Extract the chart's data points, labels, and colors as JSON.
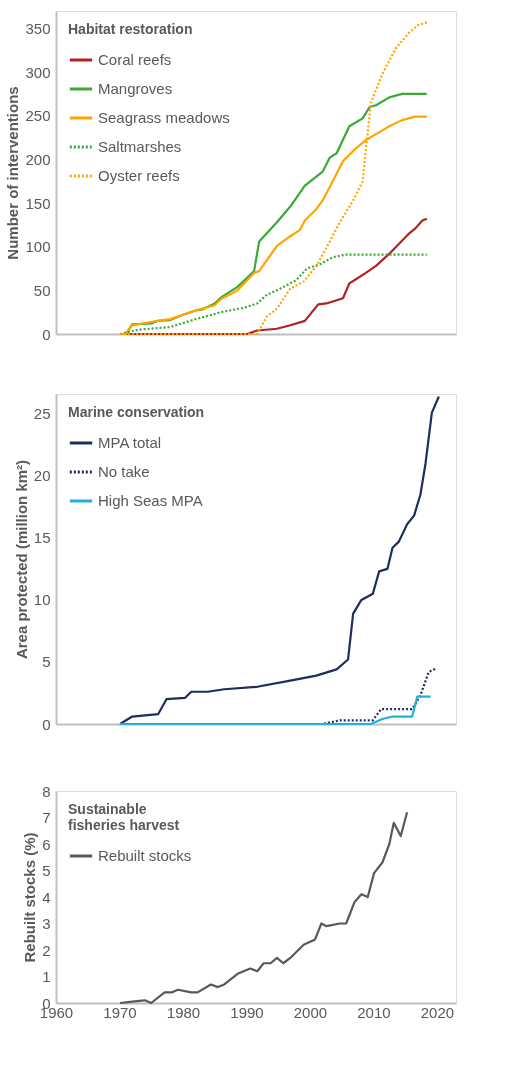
{
  "chart_data": [
    {
      "type": "line",
      "legend_title": "Habitat restoration",
      "ylabel": "Number of interventions",
      "xlim": [
        1960,
        2023
      ],
      "xticks": [
        1960,
        1970,
        1980,
        1990,
        2000,
        2010,
        2020
      ],
      "ylim": [
        0,
        370
      ],
      "yticks": [
        0,
        50,
        100,
        150,
        200,
        250,
        300,
        350
      ],
      "grid": false,
      "legend": "top left",
      "tick_labels": "y",
      "series": [
        {
          "name": "Coral reefs",
          "color": "#b22222",
          "line_style": "solid",
          "x": [
            1970.1,
            1990.1,
            1991.7,
            1994.8,
            1996.9,
            1999.2,
            2001.3,
            2002.6,
            2005.2,
            2006.2,
            2007.3,
            2008.8,
            2010.4,
            2012.5,
            2014,
            2015.6,
            2016.6,
            2017.7,
            2018.4
          ],
          "values": [
            0,
            0,
            4,
            6,
            10,
            15,
            34,
            35,
            41,
            58,
            63,
            70,
            78,
            92,
            103,
            115,
            121,
            130,
            132
          ]
        },
        {
          "name": "Mangroves",
          "color": "#3aaa35",
          "line_style": "solid",
          "x": [
            1970.1,
            1971,
            1972,
            1975,
            1976,
            1978,
            1980,
            1982,
            1983,
            1985,
            1986,
            1988.6,
            1991.2,
            1992,
            1994.8,
            1996.9,
            1999.2,
            2002,
            2003.1,
            2004.2,
            2006.2,
            2008.3,
            2009.4,
            2010.4,
            2012.5,
            2014.5,
            2018.4
          ],
          "values": [
            0,
            0,
            11,
            12,
            15,
            16,
            22,
            27,
            28,
            35,
            42,
            54,
            72,
            106,
            128,
            146,
            170,
            186,
            202,
            207,
            238,
            247,
            260,
            262,
            271,
            275,
            275
          ]
        },
        {
          "name": "Seagrass meadows",
          "color": "#ffa500",
          "line_style": "solid",
          "x": [
            1970.1,
            1971,
            1972,
            1976,
            1978,
            1982,
            1985,
            1986,
            1988.6,
            1991.2,
            1992,
            1994.8,
            1996.9,
            1998.4,
            1999.2,
            2001,
            2002,
            2003.1,
            2005.2,
            2007.3,
            2008.8,
            2010.4,
            2012.5,
            2014.5,
            2016.6,
            2018.4
          ],
          "values": [
            0,
            0,
            10,
            15,
            17,
            27,
            33,
            40,
            50,
            70,
            72,
            101,
            112,
            119,
            130,
            143,
            153,
            168,
            198,
            213,
            222,
            229,
            238,
            245,
            249,
            249
          ]
        },
        {
          "name": "Saltmarshes",
          "color": "#3aaa35",
          "line_style": "dotted",
          "x": [
            1970.1,
            1973,
            1978,
            1982,
            1986,
            1989.6,
            1991.7,
            1993.2,
            1994.8,
            1997.9,
            1999.5,
            2001.6,
            2003.6,
            2005.7,
            2018.4
          ],
          "values": [
            0,
            5,
            8,
            17,
            25,
            30,
            35,
            45,
            50,
            62,
            75,
            80,
            88,
            91,
            91
          ]
        },
        {
          "name": "Oyster reefs",
          "color": "#ffa500",
          "line_style": "dotted",
          "x": [
            1970.1,
            1991.7,
            1993.2,
            1994.8,
            1996.9,
            1999,
            2001,
            2002.6,
            2004.7,
            2006.8,
            2008.3,
            2008.8,
            2009.6,
            2011.4,
            2013.5,
            2015.6,
            2017.1,
            2018.4
          ],
          "values": [
            0,
            0,
            20,
            29,
            52,
            60,
            78,
            99,
            128,
            153,
            175,
            211,
            265,
            298,
            327,
            345,
            354,
            357
          ]
        }
      ]
    },
    {
      "type": "line",
      "legend_title": "Marine conservation",
      "ylabel": "Area protected (million km²)",
      "xlim": [
        1960,
        2023
      ],
      "xticks": [
        1960,
        1970,
        1980,
        1990,
        2000,
        2010,
        2020
      ],
      "ylim": [
        0,
        26.6
      ],
      "yticks": [
        0,
        5,
        10,
        15,
        20,
        25
      ],
      "grid": false,
      "legend": "top left",
      "tick_labels": "y",
      "series": [
        {
          "name": "MPA total",
          "color": "#1f2d5c",
          "line_style": "solid",
          "x": [
            1970.1,
            1972,
            1976.1,
            1977.4,
            1980.3,
            1981.3,
            1983.9,
            1986.5,
            1991.7,
            1996.9,
            2001,
            2004.2,
            2006,
            2006.8,
            2008.1,
            2009.9,
            2010.9,
            2012.2,
            2013,
            2014,
            2015.3,
            2016.4,
            2017.4,
            2018.2,
            2019.2,
            2020.3
          ],
          "values": [
            0,
            0.6,
            0.8,
            2.0,
            2.1,
            2.6,
            2.6,
            2.8,
            3.0,
            3.5,
            3.9,
            4.4,
            5.2,
            8.9,
            10.0,
            10.5,
            12.3,
            12.5,
            14.2,
            14.7,
            16.1,
            16.8,
            18.5,
            21.0,
            25.1,
            26.4
          ]
        },
        {
          "name": "No take",
          "color": "#1f2d5c",
          "line_style": "dotted",
          "x": [
            1970.1,
            2002,
            2004.7,
            2009.9,
            2011.2,
            2016.1,
            2017.4,
            2018.7,
            2020
          ],
          "values": [
            0,
            0,
            0.3,
            0.3,
            1.2,
            1.2,
            2.3,
            4.2,
            4.5
          ]
        },
        {
          "name": "High Seas MPA",
          "color": "#1fb0e0",
          "line_style": "solid",
          "x": [
            1970.1,
            2009.6,
            2011.4,
            2013,
            2016.1,
            2016.9,
            2019
          ],
          "values": [
            0,
            0,
            0.4,
            0.6,
            0.6,
            2.2,
            2.2
          ]
        }
      ]
    },
    {
      "type": "line",
      "legend_title": "Sustainable\nfisheries harvest",
      "ylabel": "Rebuilt stocks (%)",
      "xlim": [
        1960,
        2023
      ],
      "xticks": [
        1960,
        1970,
        1980,
        1990,
        2000,
        2010,
        2020
      ],
      "ylim": [
        0,
        8
      ],
      "yticks": [
        0,
        1,
        2,
        3,
        4,
        5,
        6,
        7,
        8
      ],
      "grid": false,
      "legend": "top left",
      "series": [
        {
          "name": "Rebuilt stocks",
          "color": "#595959",
          "line_style": "solid",
          "x": [
            1970.1,
            1972,
            1974,
            1975,
            1977.1,
            1978.2,
            1979.2,
            1981.3,
            1982.3,
            1984.4,
            1985.5,
            1986.5,
            1988.6,
            1990.6,
            1991.7,
            1992.7,
            1993.8,
            1994.8,
            1995.8,
            1996.9,
            1999,
            2000.8,
            2001.8,
            2002.6,
            2004.7,
            2005.7,
            2007,
            2008.1,
            2009.1,
            2010.1,
            2011.4,
            2012.5,
            2013.2,
            2014.3,
            2015.3
          ],
          "values": [
            0,
            0.05,
            0.1,
            0,
            0.4,
            0.4,
            0.5,
            0.4,
            0.4,
            0.7,
            0.6,
            0.7,
            1.1,
            1.3,
            1.2,
            1.5,
            1.5,
            1.7,
            1.5,
            1.7,
            2.2,
            2.4,
            3.0,
            2.9,
            3.0,
            3.0,
            3.8,
            4.1,
            4.0,
            4.9,
            5.3,
            6.0,
            6.8,
            6.3,
            7.2
          ]
        }
      ]
    }
  ]
}
